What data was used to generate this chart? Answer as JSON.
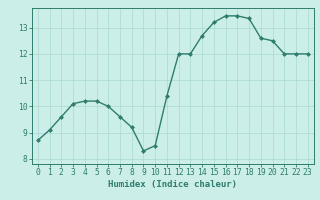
{
  "x": [
    0,
    1,
    2,
    3,
    4,
    5,
    6,
    7,
    8,
    9,
    10,
    11,
    12,
    13,
    14,
    15,
    16,
    17,
    18,
    19,
    20,
    21,
    22,
    23
  ],
  "y": [
    8.7,
    9.1,
    9.6,
    10.1,
    10.2,
    10.2,
    10.0,
    9.6,
    9.2,
    8.3,
    8.5,
    10.4,
    12.0,
    12.0,
    12.7,
    13.2,
    13.45,
    13.45,
    13.35,
    12.6,
    12.5,
    12.0,
    12.0,
    12.0
  ],
  "line_color": "#2e7d6e",
  "marker": "D",
  "markersize": 2.0,
  "linewidth": 1.0,
  "bg_color": "#cceee8",
  "grid_color": "#aad8d3",
  "xlabel": "Humidex (Indice chaleur)",
  "xlim": [
    -0.5,
    23.5
  ],
  "ylim": [
    7.8,
    13.75
  ],
  "yticks": [
    8,
    9,
    10,
    11,
    12,
    13
  ],
  "xticks": [
    0,
    1,
    2,
    3,
    4,
    5,
    6,
    7,
    8,
    9,
    10,
    11,
    12,
    13,
    14,
    15,
    16,
    17,
    18,
    19,
    20,
    21,
    22,
    23
  ],
  "tick_color": "#2e7d6e",
  "label_fontsize": 6.5,
  "tick_fontsize": 5.8
}
